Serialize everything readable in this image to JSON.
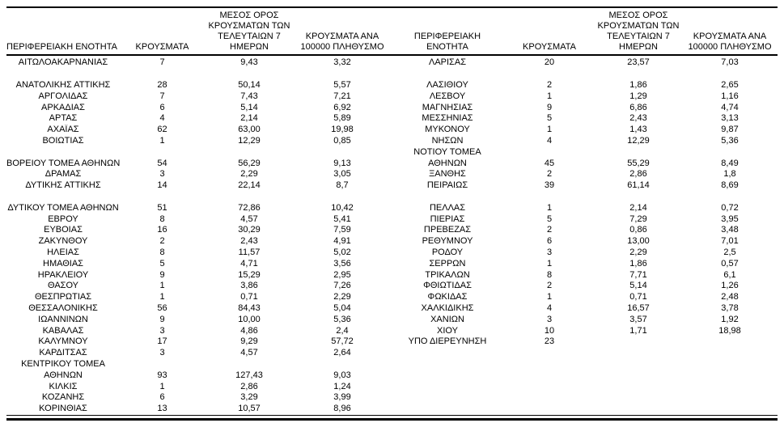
{
  "table": {
    "headers": {
      "cells": [
        "ΠΕΡΙΦΕΡΕΙΑΚΗ ΕΝΟΤΗΤΑ",
        "ΚΡΟΥΣΜΑΤΑ",
        "ΜΕΣΟΣ ΟΡΟΣ\nΚΡΟΥΣΜΑΤΩΝ ΤΩΝ\nΤΕΛΕΥΤΑΙΩΝ 7\nΗΜΕΡΩΝ",
        "ΚΡΟΥΣΜΑΤΑ ΑΝΑ\n100000 ΠΛΗΘΥΣΜΟ",
        "ΠΕΡΙΦΕΡΕΙΑΚΗ\nΕΝΟΤΗΤΑ",
        "ΚΡΟΥΣΜΑΤΑ",
        "ΜΕΣΟΣ ΟΡΟΣ\nΚΡΟΥΣΜΑΤΩΝ ΤΩΝ\nΤΕΛΕΥΤΑΙΩΝ 7\nΗΜΕΡΩΝ",
        "ΚΡΟΥΣΜΑΤΑ ΑΝΑ\n100000 ΠΛΗΘΥΣΜΟ"
      ]
    },
    "rows": [
      [
        "ΑΙΤΩΛΟΑΚΑΡΝΑΝΙΑΣ",
        "7",
        "9,43",
        "3,32",
        "ΛΑΡΙΣΑΣ",
        "20",
        "23,57",
        "7,03"
      ],
      [
        "",
        "",
        "",
        "",
        "",
        "",
        "",
        ""
      ],
      [
        "ΑΝΑΤΟΛΙΚΗΣ ΑΤΤΙΚΗΣ",
        "28",
        "50,14",
        "5,57",
        "ΛΑΣΙΘΙΟΥ",
        "2",
        "1,86",
        "2,65"
      ],
      [
        "ΑΡΓΟΛΙΔΑΣ",
        "7",
        "7,43",
        "7,21",
        "ΛΕΣΒΟΥ",
        "1",
        "1,29",
        "1,16"
      ],
      [
        "ΑΡΚΑΔΙΑΣ",
        "6",
        "5,14",
        "6,92",
        "ΜΑΓΝΗΣΙΑΣ",
        "9",
        "6,86",
        "4,74"
      ],
      [
        "ΑΡΤΑΣ",
        "4",
        "2,14",
        "5,89",
        "ΜΕΣΣΗΝΙΑΣ",
        "5",
        "2,43",
        "3,13"
      ],
      [
        "ΑΧΑΪΑΣ",
        "62",
        "63,00",
        "19,98",
        "ΜΥΚΟΝΟΥ",
        "1",
        "1,43",
        "9,87"
      ],
      [
        "ΒΟΙΩΤΙΑΣ",
        "1",
        "12,29",
        "0,85",
        "ΝΗΣΩΝ",
        "4",
        "12,29",
        "5,36"
      ],
      [
        "",
        "",
        "",
        "",
        "ΝΟΤΙΟΥ ΤΟΜΕΑ",
        "",
        "",
        ""
      ],
      [
        "ΒΟΡΕΙΟΥ ΤΟΜΕΑ ΑΘΗΝΩΝ",
        "54",
        "56,29",
        "9,13",
        "ΑΘΗΝΩΝ",
        "45",
        "55,29",
        "8,49"
      ],
      [
        "ΔΡΑΜΑΣ",
        "3",
        "2,29",
        "3,05",
        "ΞΑΝΘΗΣ",
        "2",
        "2,86",
        "1,8"
      ],
      [
        "ΔΥΤΙΚΗΣ ΑΤΤΙΚΗΣ",
        "14",
        "22,14",
        "8,7",
        "ΠΕΙΡΑΙΩΣ",
        "39",
        "61,14",
        "8,69"
      ],
      [
        "",
        "",
        "",
        "",
        "",
        "",
        "",
        ""
      ],
      [
        "ΔΥΤΙΚΟΥ ΤΟΜΕΑ ΑΘΗΝΩΝ",
        "51",
        "72,86",
        "10,42",
        "ΠΕΛΛΑΣ",
        "1",
        "2,14",
        "0,72"
      ],
      [
        "ΕΒΡΟΥ",
        "8",
        "4,57",
        "5,41",
        "ΠΙΕΡΙΑΣ",
        "5",
        "7,29",
        "3,95"
      ],
      [
        "ΕΥΒΟΙΑΣ",
        "16",
        "30,29",
        "7,59",
        "ΠΡΕΒΕΖΑΣ",
        "2",
        "0,86",
        "3,48"
      ],
      [
        "ΖΑΚΥΝΘΟΥ",
        "2",
        "2,43",
        "4,91",
        "ΡΕΘΥΜΝΟΥ",
        "6",
        "13,00",
        "7,01"
      ],
      [
        "ΗΛΕΙΑΣ",
        "8",
        "11,57",
        "5,02",
        "ΡΟΔΟΥ",
        "3",
        "2,29",
        "2,5"
      ],
      [
        "ΗΜΑΘΙΑΣ",
        "5",
        "4,71",
        "3,56",
        "ΣΕΡΡΩΝ",
        "1",
        "1,86",
        "0,57"
      ],
      [
        "ΗΡΑΚΛΕΙΟΥ",
        "9",
        "15,29",
        "2,95",
        "ΤΡΙΚΑΛΩΝ",
        "8",
        "7,71",
        "6,1"
      ],
      [
        "ΘΑΣΟΥ",
        "1",
        "3,86",
        "7,26",
        "ΦΘΙΩΤΙΔΑΣ",
        "2",
        "5,14",
        "1,26"
      ],
      [
        "ΘΕΣΠΡΩΤΙΑΣ",
        "1",
        "0,71",
        "2,29",
        "ΦΩΚΙΔΑΣ",
        "1",
        "0,71",
        "2,48"
      ],
      [
        "ΘΕΣΣΑΛΟΝΙΚΗΣ",
        "56",
        "84,43",
        "5,04",
        "ΧΑΛΚΙΔΙΚΗΣ",
        "4",
        "16,57",
        "3,78"
      ],
      [
        "ΙΩΑΝΝΙΝΩΝ",
        "9",
        "10,00",
        "5,36",
        "ΧΑΝΙΩΝ",
        "3",
        "3,57",
        "1,92"
      ],
      [
        "ΚΑΒΑΛΑΣ",
        "3",
        "4,86",
        "2,4",
        "ΧΙΟΥ",
        "10",
        "1,71",
        "18,98"
      ],
      [
        "ΚΑΛΥΜΝΟΥ",
        "17",
        "9,29",
        "57,72",
        "ΥΠΟ ΔΙΕΡΕΥΝΗΣΗ",
        "23",
        "",
        ""
      ],
      [
        "ΚΑΡΔΙΤΣΑΣ",
        "3",
        "4,57",
        "2,64",
        "",
        "",
        "",
        ""
      ],
      [
        "ΚΕΝΤΡΙΚΟΥ ΤΟΜΕΑ",
        "",
        "",
        "",
        "",
        "",
        "",
        ""
      ],
      [
        "ΑΘΗΝΩΝ",
        "93",
        "127,43",
        "9,03",
        "",
        "",
        "",
        ""
      ],
      [
        "ΚΙΛΚΙΣ",
        "1",
        "2,86",
        "1,24",
        "",
        "",
        "",
        ""
      ],
      [
        "ΚΟΖΑΝΗΣ",
        "6",
        "3,29",
        "3,99",
        "",
        "",
        "",
        ""
      ],
      [
        "ΚΟΡΙΝΘΙΑΣ",
        "13",
        "10,57",
        "8,96",
        "",
        "",
        "",
        ""
      ]
    ]
  }
}
